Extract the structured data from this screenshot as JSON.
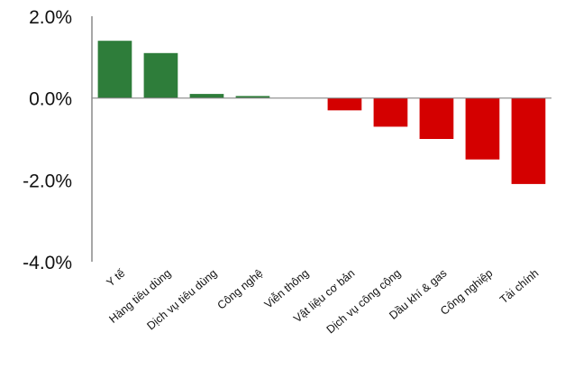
{
  "chart_data": {
    "type": "bar",
    "categories": [
      "Y tế",
      "Hàng tiêu dùng",
      "Dịch vụ tiêu dùng",
      "Công nghệ",
      "Viễn thông",
      "Vật liệu cơ bản",
      "Dịch vụ công cộng",
      "Dầu khí & gas",
      "Công nghiệp",
      "Tài chính"
    ],
    "values": [
      1.4,
      1.1,
      0.1,
      0.05,
      0.0,
      -0.3,
      -0.7,
      -1.0,
      -1.5,
      -2.1
    ],
    "y_ticks": [
      "2.0%",
      "0.0%",
      "-2.0%",
      "-4.0%"
    ],
    "y_tick_values": [
      2,
      0,
      -2,
      -4
    ],
    "ylim": [
      -4,
      2
    ],
    "grid": false,
    "legend": "none",
    "colors": {
      "positive": "#2e7d3a",
      "negative": "#d40000",
      "axis": "#888888"
    }
  }
}
